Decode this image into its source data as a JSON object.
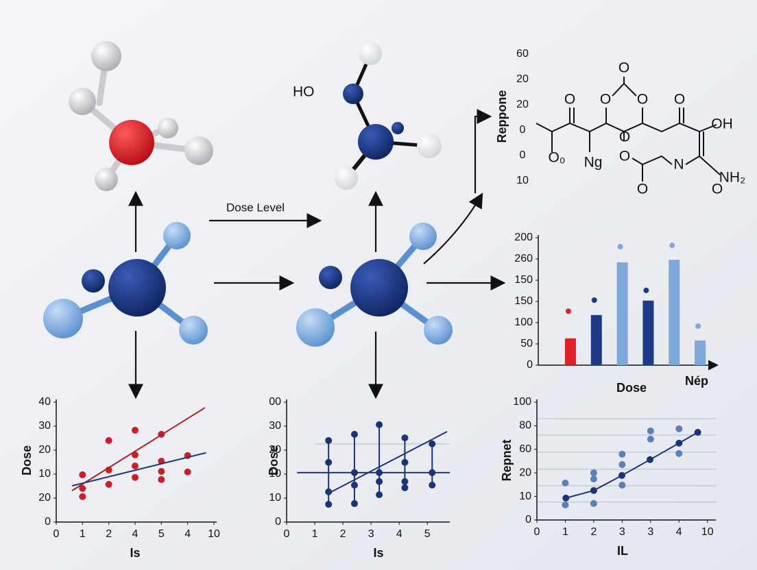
{
  "labels": {
    "dose_level": "Dose Level",
    "ho": "HO"
  },
  "structure": {
    "ylabel": "Repponе",
    "y_labels": [
      "60",
      "20",
      "20",
      "0",
      "0",
      "10"
    ],
    "texts": [
      "O",
      "O",
      "O",
      "O",
      "O",
      "OH",
      "O₀",
      "Ng",
      "O",
      "O",
      "N",
      "NH₂",
      "O",
      "O"
    ]
  },
  "chart_data": [
    {
      "type": "scatter",
      "ylabel": "Dose",
      "xlabel": "Is",
      "xlim": [
        0,
        6
      ],
      "xticks": [
        0,
        1,
        2,
        {
          "value": 3,
          "label": "4"
        },
        {
          "value": 4,
          "label": "5"
        },
        {
          "value": 5,
          "label": "4"
        },
        {
          "value": 6,
          "label": "10"
        }
      ],
      "ylim": [
        0,
        5
      ],
      "yticks": [
        0,
        {
          "value": 1,
          "label": "20"
        },
        {
          "value": 2,
          "label": "10"
        },
        {
          "value": 3,
          "label": "20"
        },
        {
          "value": 4,
          "label": "30"
        },
        {
          "value": 5,
          "label": "40"
        }
      ],
      "series": [
        {
          "color": "#c8202a",
          "mode": "markers",
          "x": [
            1,
            1,
            1,
            2,
            2,
            2,
            3,
            3,
            3,
            3,
            4,
            4,
            4,
            4,
            5,
            5
          ],
          "values": [
            1.97,
            1.4,
            1.06,
            3.4,
            2.17,
            1.57,
            3.83,
            2.8,
            2.34,
            1.86,
            3.66,
            2.54,
            2.11,
            1.77,
            2.77,
            2.09
          ]
        },
        {
          "color": "#b01e22",
          "mode": "line",
          "x": [
            0.6,
            5.66
          ],
          "values": [
            1.31,
            4.77
          ]
        },
        {
          "color": "#1f3a7a",
          "mode": "line",
          "x": [
            0.6,
            5.7
          ],
          "values": [
            1.51,
            2.89
          ]
        }
      ]
    },
    {
      "type": "scatter",
      "ylabel": "Dose",
      "xlabel": "Is",
      "xlim": [
        0,
        5.7
      ],
      "xticks": [
        0,
        1,
        2,
        3,
        4,
        5
      ],
      "ylim": [
        0,
        5
      ],
      "yticks": [
        0,
        {
          "value": 1,
          "label": "10"
        },
        {
          "value": 2,
          "label": "10"
        },
        {
          "value": 3,
          "label": "20"
        },
        {
          "value": 4,
          "label": "30"
        },
        {
          "value": 5,
          "label": "00"
        }
      ],
      "series": [
        {
          "color": "#1b3478",
          "mode": "both",
          "x": [
            1.49,
            1.49,
            1.49,
            1.49
          ],
          "values": [
            3.4,
            2.49,
            1.26,
            0.74
          ]
        },
        {
          "color": "#1b3478",
          "mode": "both",
          "x": [
            2.41,
            2.41,
            2.41,
            2.41
          ],
          "values": [
            3.66,
            2.06,
            1.54,
            0.77
          ]
        },
        {
          "color": "#1b3478",
          "mode": "both",
          "x": [
            3.29,
            3.29,
            3.29,
            3.29
          ],
          "values": [
            4.06,
            2.06,
            1.69,
            1.14
          ]
        },
        {
          "color": "#1b3478",
          "mode": "both",
          "x": [
            4.2,
            4.2,
            4.2,
            4.2
          ],
          "values": [
            3.51,
            2.49,
            1.69,
            1.43
          ]
        },
        {
          "color": "#1b3478",
          "mode": "both",
          "x": [
            5.17,
            5.17,
            5.17
          ],
          "values": [
            3.26,
            2.06,
            1.54
          ]
        },
        {
          "color": "#1b3478",
          "mode": "line",
          "x": [
            1.49,
            5.7
          ],
          "values": [
            1.2,
            3.77
          ]
        },
        {
          "color": "#1b3478",
          "mode": "line",
          "x": [
            0.37,
            5.8
          ],
          "values": [
            2.06,
            2.06
          ]
        }
      ]
    },
    {
      "type": "bar",
      "xlabel": "Dose",
      "annotation": "Nép",
      "categories": [
        null,
        null,
        null,
        null,
        null,
        null
      ],
      "values": [
        63,
        118,
        242,
        152,
        248,
        58
      ],
      "colors": [
        "#d8232a",
        "#1c3a86",
        "#7fa8da",
        "#1c3a86",
        "#7fa8da",
        "#7fa8da"
      ],
      "marker_values": [
        127,
        153,
        279,
        176,
        282,
        92
      ],
      "ylim": [
        0,
        300
      ],
      "yticks": [
        0,
        50,
        100,
        150,
        {
          "value": 200,
          "label": "150"
        },
        {
          "value": 250,
          "label": "260"
        },
        {
          "value": 300,
          "label": "200"
        }
      ]
    },
    {
      "type": "scatter",
      "ylabel": "Repnet",
      "xlabel": "IL",
      "xlim": [
        0,
        6.2
      ],
      "xticks": [
        0,
        1,
        2,
        3,
        {
          "value": 4,
          "label": "3"
        },
        {
          "value": 5,
          "label": "4"
        },
        {
          "value": 6,
          "label": "10"
        }
      ],
      "ylim": [
        0,
        5
      ],
      "yticks": [
        0,
        {
          "value": 1,
          "label": "10"
        },
        {
          "value": 2,
          "label": "20"
        },
        {
          "value": 3,
          "label": "60"
        },
        {
          "value": 4,
          "label": "80"
        },
        {
          "value": 5,
          "label": "100"
        }
      ],
      "series": [
        {
          "color": "#5b7fb8",
          "mode": "markers",
          "x": [
            1,
            1,
            2,
            2,
            2,
            3,
            3,
            3,
            4,
            4,
            5,
            5
          ],
          "values": [
            1.57,
            0.64,
            2.0,
            1.74,
            0.7,
            2.79,
            2.35,
            1.48,
            3.78,
            3.43,
            3.87,
            2.82
          ]
        },
        {
          "color": "#1b3478",
          "mode": "both",
          "x": [
            1.02,
            2,
            2.99,
            3.98,
            5,
            5.66
          ],
          "values": [
            0.93,
            1.25,
            1.89,
            2.56,
            3.26,
            3.72
          ]
        }
      ]
    }
  ]
}
